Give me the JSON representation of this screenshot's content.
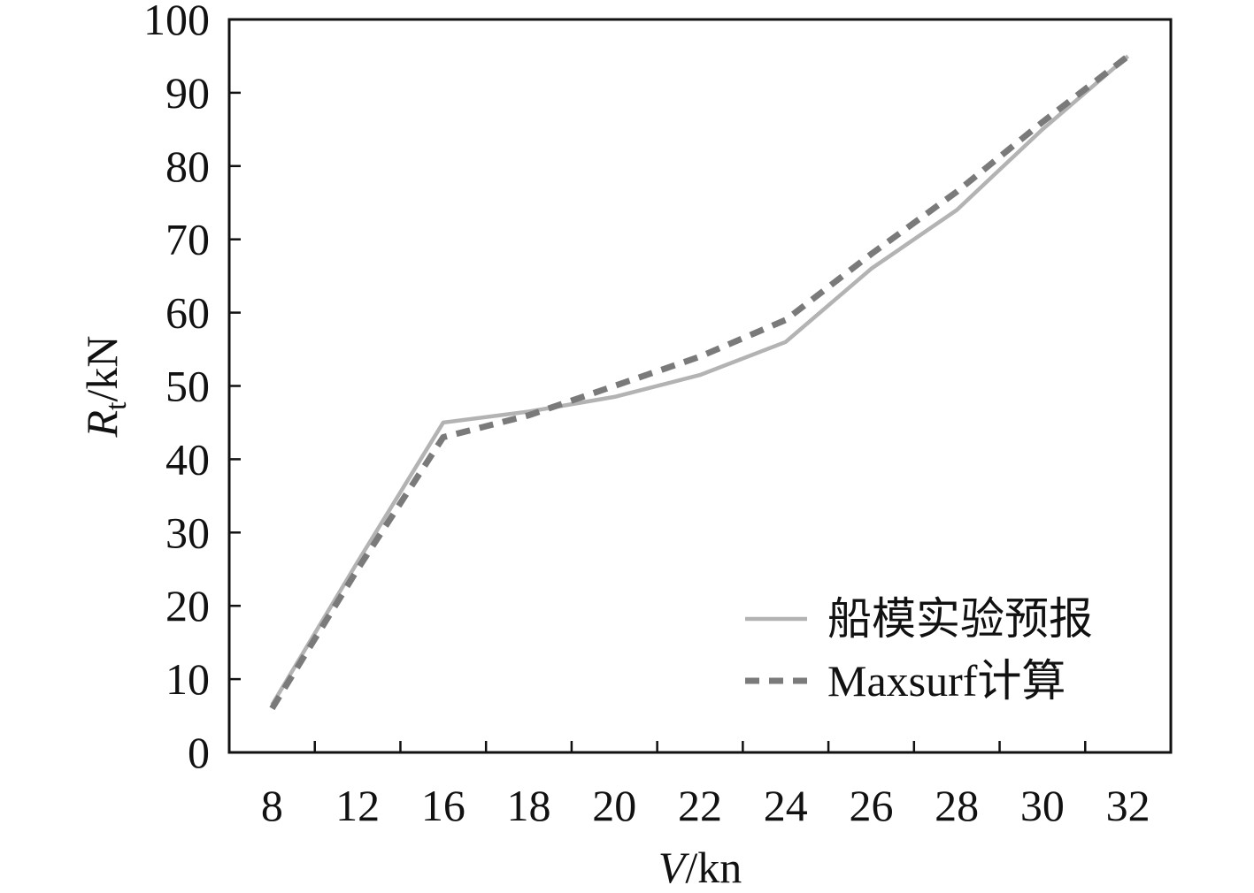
{
  "chart_data": {
    "type": "line",
    "categories": [
      "8",
      "12",
      "16",
      "18",
      "20",
      "22",
      "24",
      "26",
      "28",
      "30",
      "32"
    ],
    "ylim": [
      0,
      100
    ],
    "yticks": [
      "0",
      "10",
      "20",
      "30",
      "40",
      "50",
      "60",
      "70",
      "80",
      "90",
      "100"
    ],
    "xlabel": {
      "italic": "V",
      "unit": "/kn"
    },
    "ylabel": {
      "italic": "R",
      "sub": "t",
      "unit": "/kN"
    },
    "grid": false,
    "legend_position": "bottom-right",
    "series": [
      {
        "name": "船模实验预报",
        "color": "#b3b3b3",
        "style": "solid",
        "points": [
          {
            "x": "8",
            "y": 6.5
          },
          {
            "x": "12",
            "y": 26
          },
          {
            "x": "16",
            "y": 45
          },
          {
            "x": "18",
            "y": 46.5
          },
          {
            "x": "20",
            "y": 48.5
          },
          {
            "x": "22",
            "y": 51.5
          },
          {
            "x": "24",
            "y": 56
          },
          {
            "x": "26",
            "y": 66
          },
          {
            "x": "28",
            "y": 74
          },
          {
            "x": "30",
            "y": 85
          },
          {
            "x": "32",
            "y": 95
          }
        ]
      },
      {
        "name": "Maxsurf计算",
        "color": "#7a7a7a",
        "style": "dashed",
        "points": [
          {
            "x": "8",
            "y": 6
          },
          {
            "x": "12",
            "y": 25
          },
          {
            "x": "16",
            "y": 43
          },
          {
            "x": "18",
            "y": 46
          },
          {
            "x": "20",
            "y": 50
          },
          {
            "x": "22",
            "y": 54
          },
          {
            "x": "24",
            "y": 59
          },
          {
            "x": "26",
            "y": 68
          },
          {
            "x": "28",
            "y": 76.5
          },
          {
            "x": "30",
            "y": 86
          },
          {
            "x": "32",
            "y": 95
          }
        ]
      }
    ]
  }
}
